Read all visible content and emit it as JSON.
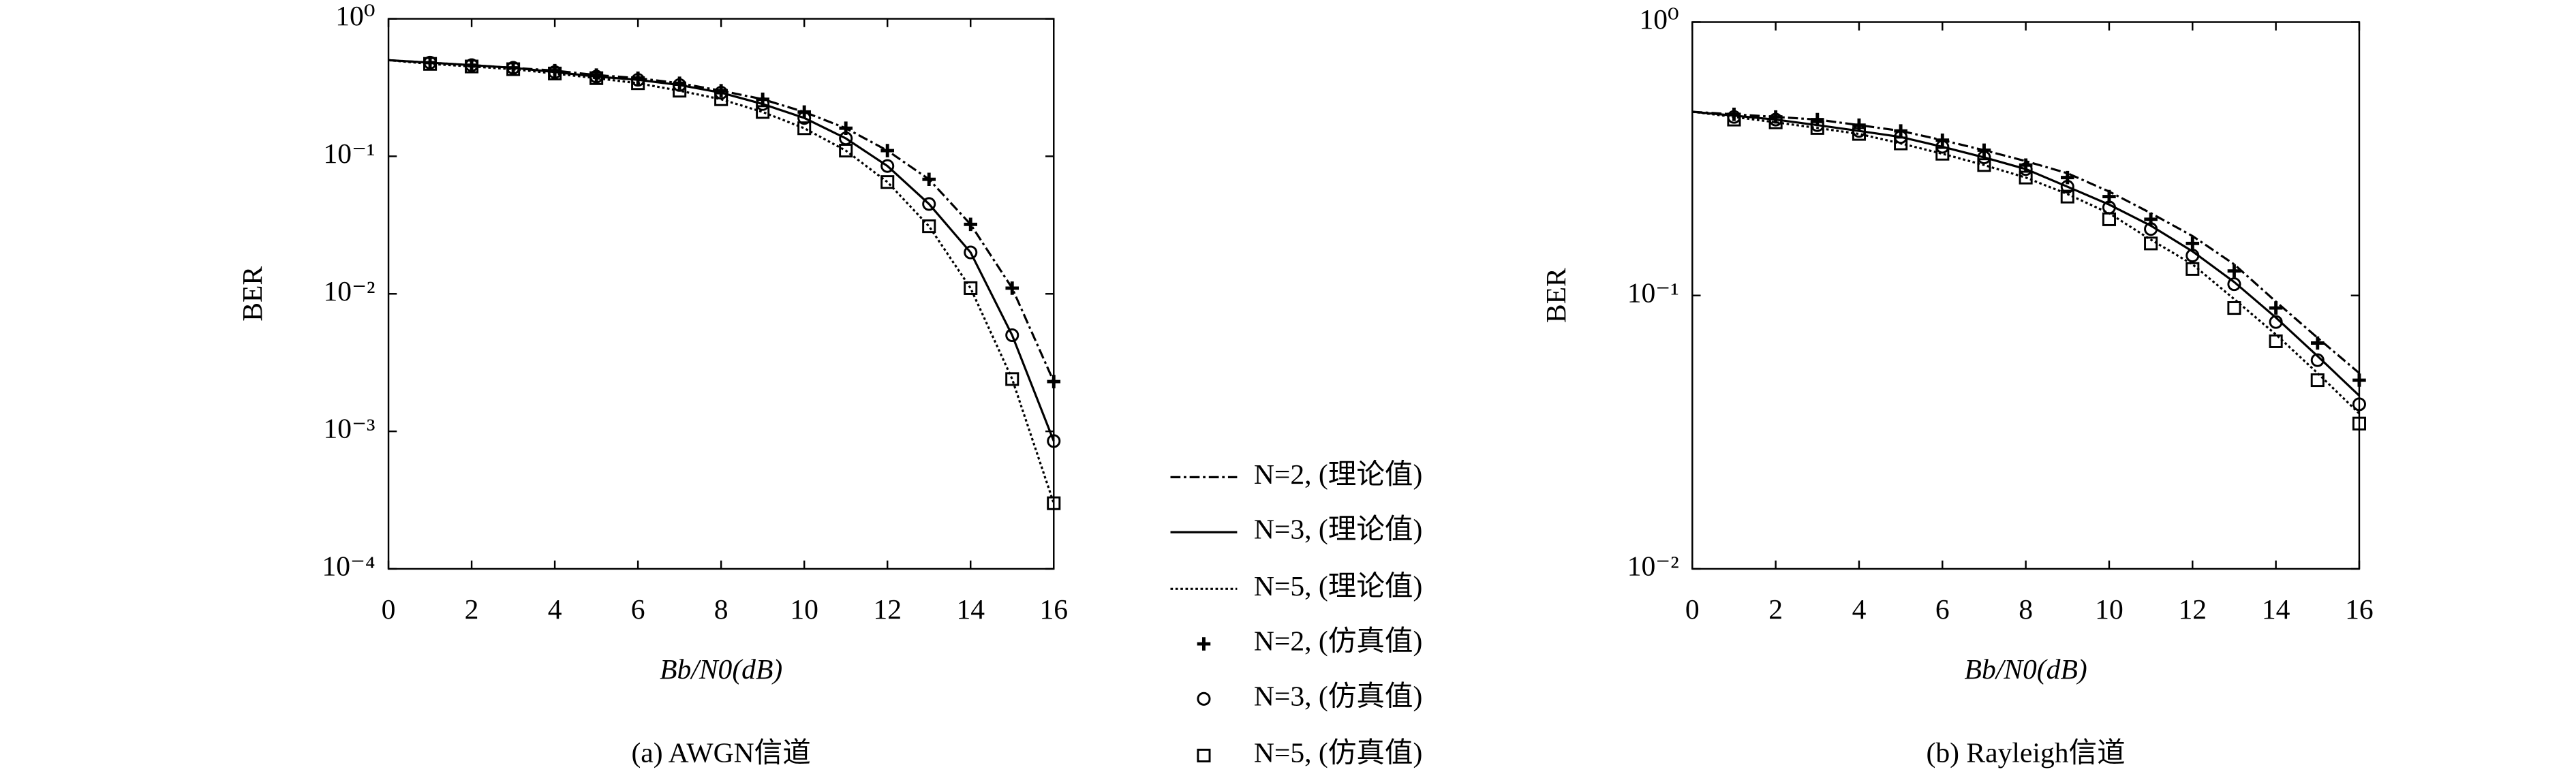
{
  "chart_data": [
    {
      "type": "line",
      "title": "(a) AWGN信道",
      "x_label": "Bb/N0(dB)",
      "y_label": "BER",
      "log_y": true,
      "grid": false,
      "xlim": [
        0,
        16
      ],
      "xticks": [
        0,
        2,
        4,
        6,
        8,
        10,
        12,
        14,
        16
      ],
      "ylim": [
        0.0001,
        1
      ],
      "yticks": [
        {
          "value": 0.0001,
          "label": "10⁻⁴"
        },
        {
          "value": 0.001,
          "label": "10⁻³"
        },
        {
          "value": 0.01,
          "label": "10⁻²"
        },
        {
          "value": 0.1,
          "label": "10⁻¹"
        },
        {
          "value": 1,
          "label": "10⁰"
        }
      ],
      "series": [
        {
          "name": "N=2, (理论值)",
          "color": "#000000",
          "style": "dashdot",
          "x": [
            0,
            1,
            2,
            3,
            4,
            5,
            6,
            7,
            8,
            9,
            10,
            11,
            12,
            13,
            14,
            15,
            16
          ],
          "values": [
            0.5,
            0.48,
            0.46,
            0.44,
            0.42,
            0.39,
            0.37,
            0.34,
            0.3,
            0.26,
            0.21,
            0.16,
            0.11,
            0.068,
            0.032,
            0.011,
            0.0023
          ]
        },
        {
          "name": "N=3, (理论值)",
          "color": "#000000",
          "style": "solid",
          "x": [
            0,
            1,
            2,
            3,
            4,
            5,
            6,
            7,
            8,
            9,
            10,
            11,
            12,
            13,
            14,
            15,
            16
          ],
          "values": [
            0.5,
            0.48,
            0.46,
            0.44,
            0.41,
            0.38,
            0.36,
            0.33,
            0.29,
            0.24,
            0.19,
            0.135,
            0.085,
            0.045,
            0.02,
            0.005,
            0.00085
          ]
        },
        {
          "name": "N=5, (理论值)",
          "color": "#000000",
          "style": "dotted",
          "x": [
            0,
            1,
            2,
            3,
            4,
            5,
            6,
            7,
            8,
            9,
            10,
            11,
            12,
            13,
            14,
            15,
            16
          ],
          "values": [
            0.5,
            0.47,
            0.45,
            0.43,
            0.4,
            0.37,
            0.34,
            0.3,
            0.26,
            0.21,
            0.16,
            0.11,
            0.065,
            0.031,
            0.011,
            0.0024,
            0.0003
          ]
        },
        {
          "name": "N=2, (仿真值)",
          "color": "#000000",
          "marker": "plus",
          "x": [
            1,
            2,
            3,
            4,
            5,
            6,
            7,
            8,
            9,
            10,
            11,
            12,
            13,
            14,
            15,
            16
          ],
          "values": [
            0.48,
            0.46,
            0.44,
            0.42,
            0.39,
            0.37,
            0.34,
            0.3,
            0.26,
            0.21,
            0.16,
            0.11,
            0.068,
            0.032,
            0.011,
            0.0023
          ]
        },
        {
          "name": "N=3, (仿真值)",
          "color": "#000000",
          "marker": "circle",
          "x": [
            1,
            2,
            3,
            4,
            5,
            6,
            7,
            8,
            9,
            10,
            11,
            12,
            13,
            14,
            15,
            16
          ],
          "values": [
            0.48,
            0.46,
            0.44,
            0.41,
            0.38,
            0.36,
            0.33,
            0.29,
            0.24,
            0.19,
            0.135,
            0.085,
            0.045,
            0.02,
            0.005,
            0.00085
          ]
        },
        {
          "name": "N=5, (仿真值)",
          "color": "#000000",
          "marker": "square",
          "x": [
            1,
            2,
            3,
            4,
            5,
            6,
            7,
            8,
            9,
            10,
            11,
            12,
            13,
            14,
            15,
            16
          ],
          "values": [
            0.47,
            0.45,
            0.43,
            0.4,
            0.37,
            0.34,
            0.3,
            0.26,
            0.21,
            0.16,
            0.11,
            0.065,
            0.031,
            0.011,
            0.0024,
            0.0003
          ]
        }
      ]
    },
    {
      "type": "line",
      "title": "(b) Rayleigh信道",
      "x_label": "Bb/N0(dB)",
      "y_label": "BER",
      "log_y": true,
      "grid": false,
      "xlim": [
        0,
        16
      ],
      "xticks": [
        0,
        2,
        4,
        6,
        8,
        10,
        12,
        14,
        16
      ],
      "ylim": [
        0.01,
        1
      ],
      "yticks": [
        {
          "value": 0.01,
          "label": "10⁻²"
        },
        {
          "value": 0.1,
          "label": "10⁻¹"
        },
        {
          "value": 1,
          "label": "10⁰"
        }
      ],
      "series": [
        {
          "name": "N=2, (理论值)",
          "color": "#000000",
          "style": "dashdot",
          "x": [
            0,
            1,
            2,
            3,
            4,
            5,
            6,
            7,
            8,
            9,
            10,
            11,
            12,
            13,
            14,
            15,
            16
          ],
          "values": [
            0.47,
            0.46,
            0.45,
            0.44,
            0.42,
            0.4,
            0.37,
            0.34,
            0.31,
            0.28,
            0.24,
            0.2,
            0.165,
            0.13,
            0.095,
            0.07,
            0.052
          ]
        },
        {
          "name": "N=3, (理论值)",
          "color": "#000000",
          "style": "solid",
          "x": [
            0,
            1,
            2,
            3,
            4,
            5,
            6,
            7,
            8,
            9,
            10,
            11,
            12,
            13,
            14,
            15,
            16
          ],
          "values": [
            0.47,
            0.455,
            0.44,
            0.42,
            0.4,
            0.38,
            0.35,
            0.32,
            0.29,
            0.25,
            0.215,
            0.18,
            0.145,
            0.112,
            0.083,
            0.06,
            0.043
          ]
        },
        {
          "name": "N=5, (理论值)",
          "color": "#000000",
          "style": "dotted",
          "x": [
            0,
            1,
            2,
            3,
            4,
            5,
            6,
            7,
            8,
            9,
            10,
            11,
            12,
            13,
            14,
            15,
            16
          ],
          "values": [
            0.47,
            0.45,
            0.43,
            0.41,
            0.39,
            0.36,
            0.33,
            0.3,
            0.27,
            0.235,
            0.2,
            0.16,
            0.13,
            0.097,
            0.072,
            0.052,
            0.037
          ]
        },
        {
          "name": "N=2, (仿真值)",
          "color": "#000000",
          "marker": "plus",
          "x": [
            1,
            2,
            3,
            4,
            5,
            6,
            7,
            8,
            9,
            10,
            11,
            12,
            13,
            14,
            15,
            16
          ],
          "values": [
            0.46,
            0.45,
            0.44,
            0.42,
            0.4,
            0.37,
            0.34,
            0.3,
            0.27,
            0.23,
            0.19,
            0.155,
            0.123,
            0.09,
            0.067,
            0.049
          ]
        },
        {
          "name": "N=3, (仿真值)",
          "color": "#000000",
          "marker": "circle",
          "x": [
            1,
            2,
            3,
            4,
            5,
            6,
            7,
            8,
            9,
            10,
            11,
            12,
            13,
            14,
            15,
            16
          ],
          "values": [
            0.45,
            0.44,
            0.42,
            0.4,
            0.38,
            0.35,
            0.32,
            0.29,
            0.25,
            0.21,
            0.175,
            0.14,
            0.11,
            0.08,
            0.058,
            0.04
          ]
        },
        {
          "name": "N=5, (仿真值)",
          "color": "#000000",
          "marker": "square",
          "x": [
            1,
            2,
            3,
            4,
            5,
            6,
            7,
            8,
            9,
            10,
            11,
            12,
            13,
            14,
            15,
            16
          ],
          "values": [
            0.44,
            0.43,
            0.41,
            0.39,
            0.36,
            0.33,
            0.3,
            0.27,
            0.23,
            0.19,
            0.155,
            0.125,
            0.09,
            0.068,
            0.049,
            0.034
          ]
        }
      ]
    }
  ]
}
